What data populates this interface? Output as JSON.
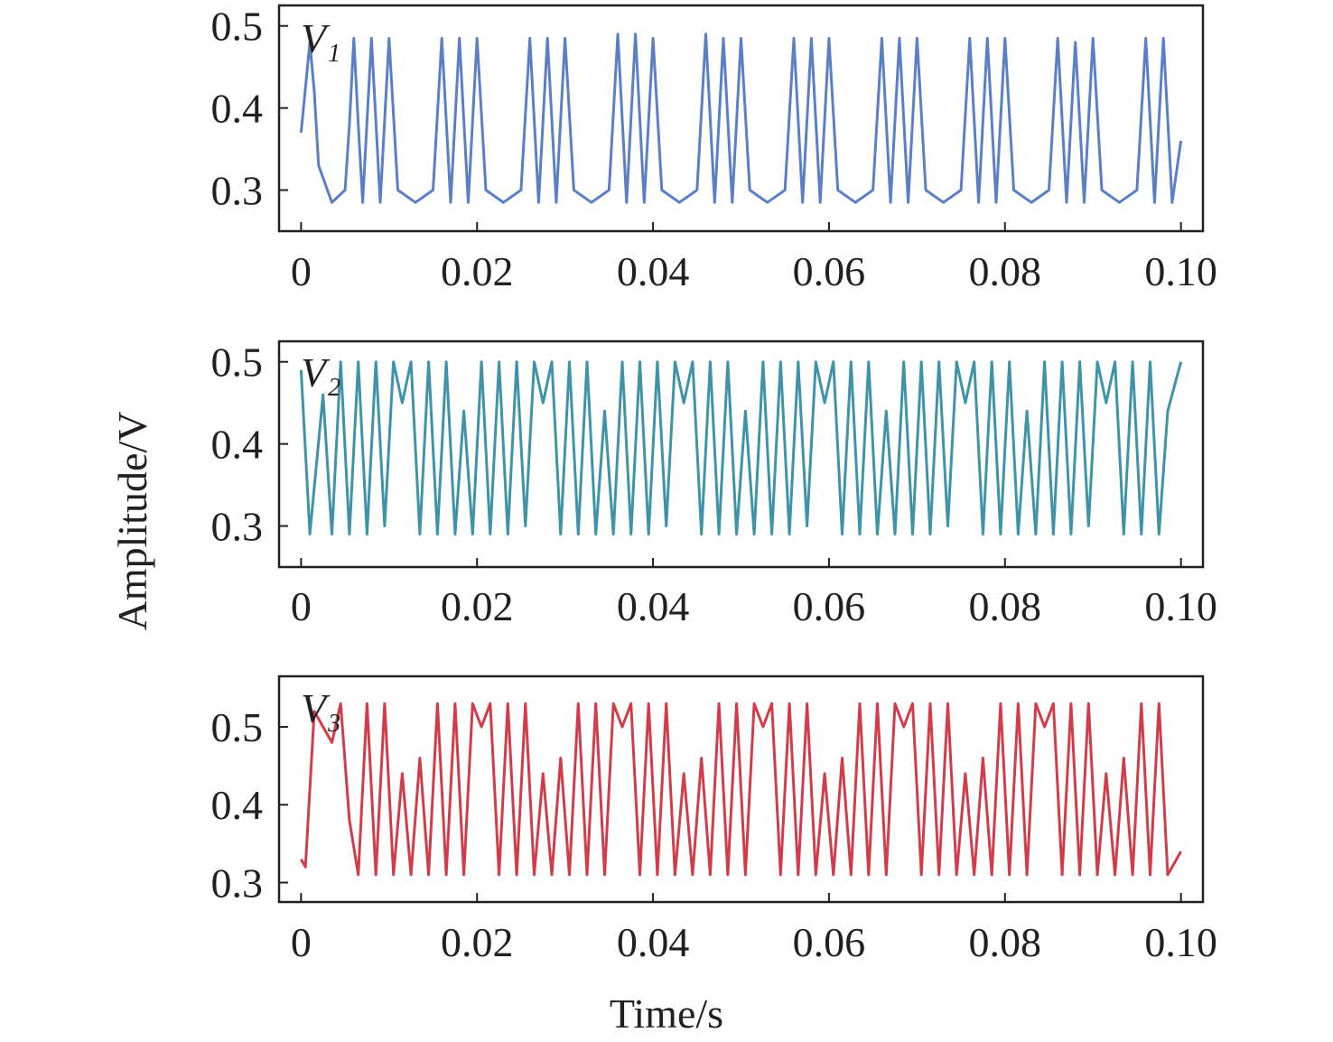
{
  "chart_data": [
    {
      "type": "line",
      "series": [
        {
          "name": "V1",
          "color": "#5b7fc4",
          "x": [
            0,
            0.001,
            0.0015,
            0.002,
            0.0035,
            0.005,
            0.0055,
            0.006,
            0.0065,
            0.007,
            0.008,
            0.009,
            0.01,
            0.011,
            0.013,
            0.015,
            0.016,
            0.017,
            0.018,
            0.019,
            0.02,
            0.021,
            0.023,
            0.025,
            0.026,
            0.027,
            0.028,
            0.029,
            0.03,
            0.031,
            0.033,
            0.035,
            0.036,
            0.037,
            0.038,
            0.039,
            0.04,
            0.041,
            0.043,
            0.045,
            0.046,
            0.047,
            0.048,
            0.049,
            0.05,
            0.051,
            0.053,
            0.055,
            0.056,
            0.057,
            0.058,
            0.059,
            0.06,
            0.061,
            0.063,
            0.065,
            0.066,
            0.067,
            0.068,
            0.069,
            0.07,
            0.071,
            0.073,
            0.075,
            0.076,
            0.077,
            0.078,
            0.079,
            0.08,
            0.081,
            0.083,
            0.085,
            0.086,
            0.087,
            0.088,
            0.089,
            0.09,
            0.091,
            0.093,
            0.095,
            0.096,
            0.097,
            0.098,
            0.099,
            0.1
          ],
          "y": [
            0.37,
            0.48,
            0.42,
            0.33,
            0.285,
            0.3,
            0.38,
            0.485,
            0.38,
            0.285,
            0.485,
            0.285,
            0.485,
            0.3,
            0.285,
            0.3,
            0.485,
            0.285,
            0.485,
            0.285,
            0.485,
            0.3,
            0.285,
            0.3,
            0.485,
            0.285,
            0.485,
            0.285,
            0.485,
            0.3,
            0.285,
            0.3,
            0.49,
            0.285,
            0.49,
            0.285,
            0.485,
            0.3,
            0.285,
            0.3,
            0.49,
            0.285,
            0.485,
            0.285,
            0.485,
            0.3,
            0.285,
            0.3,
            0.485,
            0.285,
            0.485,
            0.285,
            0.485,
            0.3,
            0.285,
            0.3,
            0.485,
            0.285,
            0.485,
            0.285,
            0.485,
            0.3,
            0.285,
            0.3,
            0.485,
            0.285,
            0.485,
            0.285,
            0.485,
            0.3,
            0.285,
            0.3,
            0.485,
            0.285,
            0.48,
            0.285,
            0.485,
            0.3,
            0.285,
            0.3,
            0.485,
            0.285,
            0.485,
            0.285,
            0.36
          ]
        }
      ],
      "series_label": "V",
      "series_label_sub": "1",
      "xlim": [
        -0.0025,
        0.1025
      ],
      "ylim": [
        0.25,
        0.525
      ],
      "xticks": [
        0,
        0.02,
        0.04,
        0.06,
        0.08,
        0.1
      ],
      "xtick_labels": [
        "0",
        "0.02",
        "0.04",
        "0.06",
        "0.08",
        "0.10"
      ],
      "yticks": [
        0.3,
        0.4,
        0.5
      ],
      "ytick_labels": [
        "0.3",
        "0.4",
        "0.5"
      ],
      "grid": false
    },
    {
      "type": "line",
      "series": [
        {
          "name": "V2",
          "color": "#3f93a8",
          "x": [
            0,
            0.001,
            0.0025,
            0.0035,
            0.0045,
            0.0055,
            0.0065,
            0.0075,
            0.0085,
            0.0095,
            0.0105,
            0.0115,
            0.0125,
            0.0135,
            0.0145,
            0.0155,
            0.0165,
            0.0175,
            0.0185,
            0.0195,
            0.0205,
            0.0215,
            0.0225,
            0.0235,
            0.0245,
            0.0255,
            0.0265,
            0.0275,
            0.0285,
            0.0295,
            0.0305,
            0.0315,
            0.0325,
            0.0335,
            0.0345,
            0.0355,
            0.0365,
            0.0375,
            0.0385,
            0.0395,
            0.0405,
            0.0415,
            0.0425,
            0.0435,
            0.0445,
            0.0455,
            0.0465,
            0.0475,
            0.0485,
            0.0495,
            0.0505,
            0.0515,
            0.0525,
            0.0535,
            0.0545,
            0.0555,
            0.0565,
            0.0575,
            0.0585,
            0.0595,
            0.0605,
            0.0615,
            0.0625,
            0.0635,
            0.0645,
            0.0655,
            0.0665,
            0.0675,
            0.0685,
            0.0695,
            0.0705,
            0.0715,
            0.0725,
            0.0735,
            0.0745,
            0.0755,
            0.0765,
            0.0775,
            0.0785,
            0.0795,
            0.0805,
            0.0815,
            0.0825,
            0.0835,
            0.0845,
            0.0855,
            0.0865,
            0.0875,
            0.0885,
            0.0895,
            0.0905,
            0.0915,
            0.0925,
            0.0935,
            0.0945,
            0.0955,
            0.0965,
            0.0975,
            0.0985,
            0.1
          ],
          "y": [
            0.49,
            0.29,
            0.46,
            0.29,
            0.5,
            0.29,
            0.5,
            0.29,
            0.5,
            0.3,
            0.5,
            0.45,
            0.5,
            0.29,
            0.5,
            0.29,
            0.5,
            0.29,
            0.44,
            0.29,
            0.5,
            0.29,
            0.5,
            0.29,
            0.5,
            0.3,
            0.5,
            0.45,
            0.5,
            0.29,
            0.5,
            0.29,
            0.5,
            0.29,
            0.44,
            0.29,
            0.5,
            0.29,
            0.5,
            0.29,
            0.5,
            0.3,
            0.5,
            0.45,
            0.5,
            0.29,
            0.5,
            0.29,
            0.5,
            0.29,
            0.44,
            0.29,
            0.5,
            0.29,
            0.5,
            0.29,
            0.5,
            0.3,
            0.5,
            0.45,
            0.5,
            0.29,
            0.5,
            0.29,
            0.5,
            0.29,
            0.44,
            0.29,
            0.5,
            0.29,
            0.5,
            0.29,
            0.5,
            0.3,
            0.5,
            0.45,
            0.5,
            0.29,
            0.5,
            0.29,
            0.5,
            0.29,
            0.44,
            0.29,
            0.5,
            0.29,
            0.5,
            0.29,
            0.5,
            0.3,
            0.5,
            0.45,
            0.5,
            0.29,
            0.5,
            0.29,
            0.5,
            0.29,
            0.44,
            0.5
          ]
        }
      ],
      "series_label": "V",
      "series_label_sub": "2",
      "xlim": [
        -0.0025,
        0.1025
      ],
      "ylim": [
        0.25,
        0.525
      ],
      "xticks": [
        0,
        0.02,
        0.04,
        0.06,
        0.08,
        0.1
      ],
      "xtick_labels": [
        "0",
        "0.02",
        "0.04",
        "0.06",
        "0.08",
        "0.10"
      ],
      "yticks": [
        0.3,
        0.4,
        0.5
      ],
      "ytick_labels": [
        "0.3",
        "0.4",
        "0.5"
      ],
      "grid": false
    },
    {
      "type": "line",
      "series": [
        {
          "name": "V3",
          "color": "#d23c4a",
          "x": [
            0,
            0.0005,
            0.0015,
            0.0025,
            0.0035,
            0.0045,
            0.0055,
            0.0065,
            0.0075,
            0.0085,
            0.0095,
            0.0105,
            0.0115,
            0.0125,
            0.0135,
            0.0145,
            0.0155,
            0.0165,
            0.0175,
            0.0185,
            0.0195,
            0.0205,
            0.0215,
            0.0225,
            0.0235,
            0.0245,
            0.0255,
            0.0265,
            0.0275,
            0.0285,
            0.0295,
            0.0305,
            0.0315,
            0.0325,
            0.0335,
            0.0345,
            0.0355,
            0.0365,
            0.0375,
            0.0385,
            0.0395,
            0.0405,
            0.0415,
            0.0425,
            0.0435,
            0.0445,
            0.0455,
            0.0465,
            0.0475,
            0.0485,
            0.0495,
            0.0505,
            0.0515,
            0.0525,
            0.0535,
            0.0545,
            0.0555,
            0.0565,
            0.0575,
            0.0585,
            0.0595,
            0.0605,
            0.0615,
            0.0625,
            0.0635,
            0.0645,
            0.0655,
            0.0665,
            0.0675,
            0.0685,
            0.0695,
            0.0705,
            0.0715,
            0.0725,
            0.0735,
            0.0745,
            0.0755,
            0.0765,
            0.0775,
            0.0785,
            0.0795,
            0.0805,
            0.0815,
            0.0825,
            0.0835,
            0.0845,
            0.0855,
            0.0865,
            0.0875,
            0.0885,
            0.0895,
            0.0905,
            0.0915,
            0.0925,
            0.0935,
            0.0945,
            0.0955,
            0.0965,
            0.0975,
            0.0985,
            0.1
          ],
          "y": [
            0.33,
            0.32,
            0.52,
            0.5,
            0.48,
            0.53,
            0.38,
            0.31,
            0.53,
            0.31,
            0.53,
            0.31,
            0.44,
            0.31,
            0.46,
            0.31,
            0.53,
            0.31,
            0.53,
            0.31,
            0.53,
            0.5,
            0.53,
            0.31,
            0.53,
            0.31,
            0.53,
            0.31,
            0.44,
            0.31,
            0.46,
            0.31,
            0.53,
            0.31,
            0.53,
            0.31,
            0.53,
            0.5,
            0.53,
            0.31,
            0.53,
            0.31,
            0.53,
            0.31,
            0.44,
            0.31,
            0.46,
            0.31,
            0.53,
            0.31,
            0.53,
            0.31,
            0.53,
            0.5,
            0.53,
            0.31,
            0.53,
            0.31,
            0.53,
            0.31,
            0.44,
            0.31,
            0.46,
            0.31,
            0.53,
            0.31,
            0.53,
            0.31,
            0.53,
            0.5,
            0.53,
            0.31,
            0.53,
            0.31,
            0.53,
            0.31,
            0.44,
            0.31,
            0.46,
            0.31,
            0.53,
            0.31,
            0.53,
            0.31,
            0.53,
            0.5,
            0.53,
            0.31,
            0.53,
            0.31,
            0.53,
            0.31,
            0.44,
            0.31,
            0.46,
            0.31,
            0.53,
            0.31,
            0.53,
            0.31,
            0.34
          ]
        }
      ],
      "series_label": "V",
      "series_label_sub": "3",
      "xlim": [
        -0.0025,
        0.1025
      ],
      "ylim": [
        0.275,
        0.565
      ],
      "xticks": [
        0,
        0.02,
        0.04,
        0.06,
        0.08,
        0.1
      ],
      "xtick_labels": [
        "0",
        "0.02",
        "0.04",
        "0.06",
        "0.08",
        "0.10"
      ],
      "yticks": [
        0.3,
        0.4,
        0.5
      ],
      "ytick_labels": [
        "0.3",
        "0.4",
        "0.5"
      ],
      "grid": false
    }
  ],
  "ylabel": "Amplitude/V",
  "xlabel": "Time/s"
}
